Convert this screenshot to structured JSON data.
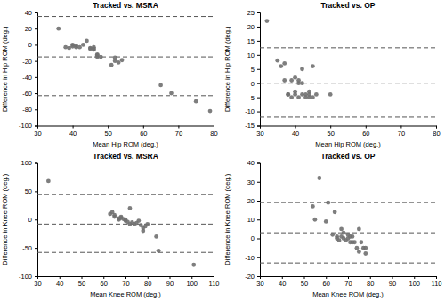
{
  "chart_data": [
    {
      "type": "scatter",
      "title": "Tracked vs. MSRA",
      "xlabel": "Mean Hip ROM (deg.)",
      "ylabel": "Difference in Hip ROM (deg.)",
      "xlim": [
        30,
        80
      ],
      "ylim": [
        -100,
        40
      ],
      "xticks": [
        30,
        40,
        50,
        60,
        70,
        80
      ],
      "yticks": [
        -100,
        -80,
        -60,
        -40,
        -20,
        0,
        20,
        40
      ],
      "color": "#707070",
      "hlines": {
        "values": [
          35,
          -15,
          -63
        ],
        "color": "#555555",
        "line_style": "dashed"
      },
      "x": [
        36,
        38,
        39,
        40,
        40,
        41,
        41,
        42,
        43,
        44,
        45,
        45,
        46,
        46,
        46,
        47,
        47,
        47,
        48,
        51,
        52,
        52,
        53,
        54,
        65,
        68,
        75,
        79
      ],
      "values": [
        20,
        -3,
        -4,
        -2,
        0,
        -3,
        -1,
        -3,
        0,
        5,
        -4,
        -5,
        -3,
        -5,
        -6,
        -15,
        -12,
        -13,
        -15,
        -25,
        -20,
        -16,
        -22,
        -19,
        -50,
        -60,
        -70,
        -82
      ]
    },
    {
      "type": "scatter",
      "title": "Tracked vs. OP",
      "xlabel": "Mean Hip ROM (deg.)",
      "ylabel": "Difference in Hip ROM (deg.)",
      "xlim": [
        30,
        80
      ],
      "ylim": [
        -15,
        25
      ],
      "xticks": [
        30,
        40,
        50,
        60,
        70,
        80
      ],
      "yticks": [
        -15,
        -10,
        -5,
        0,
        5,
        10,
        15,
        20,
        25
      ],
      "color": "#707070",
      "hlines": {
        "values": [
          12.5,
          0,
          -12
        ],
        "color": "#555555",
        "line_style": "dashed"
      },
      "x": [
        32,
        35,
        36,
        37,
        37,
        38,
        38,
        39,
        39,
        40,
        40,
        40,
        41,
        41,
        41,
        42,
        42,
        42,
        43,
        43,
        44,
        44,
        44,
        45,
        45,
        46,
        50
      ],
      "values": [
        22,
        8,
        6,
        1,
        7,
        -4,
        -4,
        -5,
        1,
        -4,
        2,
        -3,
        -5,
        0,
        1,
        0,
        5,
        -4,
        -4,
        -5,
        -4,
        -5,
        -3,
        -5,
        6,
        -4,
        -4
      ]
    },
    {
      "type": "scatter",
      "title": "Tracked vs. MSRA",
      "xlabel": "Mean Knee ROM (deg.)",
      "ylabel": "Difference in Knee ROM (deg.)",
      "xlim": [
        30,
        110
      ],
      "ylim": [
        -100,
        100
      ],
      "xticks": [
        30,
        40,
        50,
        60,
        70,
        80,
        90,
        100,
        110
      ],
      "yticks": [
        -100,
        -50,
        0,
        50,
        100
      ],
      "color": "#707070",
      "hlines": {
        "values": [
          44,
          -8,
          -58
        ],
        "color": "#555555",
        "line_style": "dashed"
      },
      "x": [
        35,
        63,
        64,
        65,
        65,
        67,
        67,
        68,
        68,
        69,
        70,
        70,
        71,
        72,
        72,
        73,
        74,
        75,
        76,
        77,
        78,
        78,
        79,
        80,
        84,
        85,
        101
      ],
      "values": [
        68,
        10,
        13,
        5,
        8,
        2,
        0,
        3,
        5,
        1,
        -2,
        0,
        -4,
        -8,
        20,
        -5,
        -8,
        -6,
        -2,
        -10,
        -15,
        -20,
        -12,
        -8,
        -30,
        -55,
        -80
      ]
    },
    {
      "type": "scatter",
      "title": "Tracked vs. OP",
      "xlabel": "Mean Knee ROM (deg.)",
      "ylabel": "Difference in Knee ROM (deg.)",
      "xlim": [
        30,
        110
      ],
      "ylim": [
        -20,
        40
      ],
      "xticks": [
        30,
        40,
        50,
        60,
        70,
        80,
        90,
        100,
        110
      ],
      "yticks": [
        -20,
        -10,
        0,
        10,
        20,
        30,
        40
      ],
      "color": "#707070",
      "hlines": {
        "values": [
          19,
          3,
          -13
        ],
        "color": "#555555",
        "line_style": "dashed"
      },
      "x": [
        54,
        55,
        57,
        60,
        61,
        63,
        64,
        65,
        65,
        66,
        67,
        67,
        68,
        68,
        69,
        70,
        70,
        71,
        71,
        72,
        72,
        73,
        74,
        75,
        75,
        76,
        77,
        78,
        78
      ],
      "values": [
        17,
        10,
        32,
        9,
        19,
        2,
        14,
        0,
        1,
        -1,
        5,
        1,
        0,
        3,
        -1,
        0,
        2,
        -2,
        1,
        -2,
        1,
        -2,
        -5,
        5,
        -7,
        -2,
        -5,
        -5,
        -8
      ]
    }
  ]
}
